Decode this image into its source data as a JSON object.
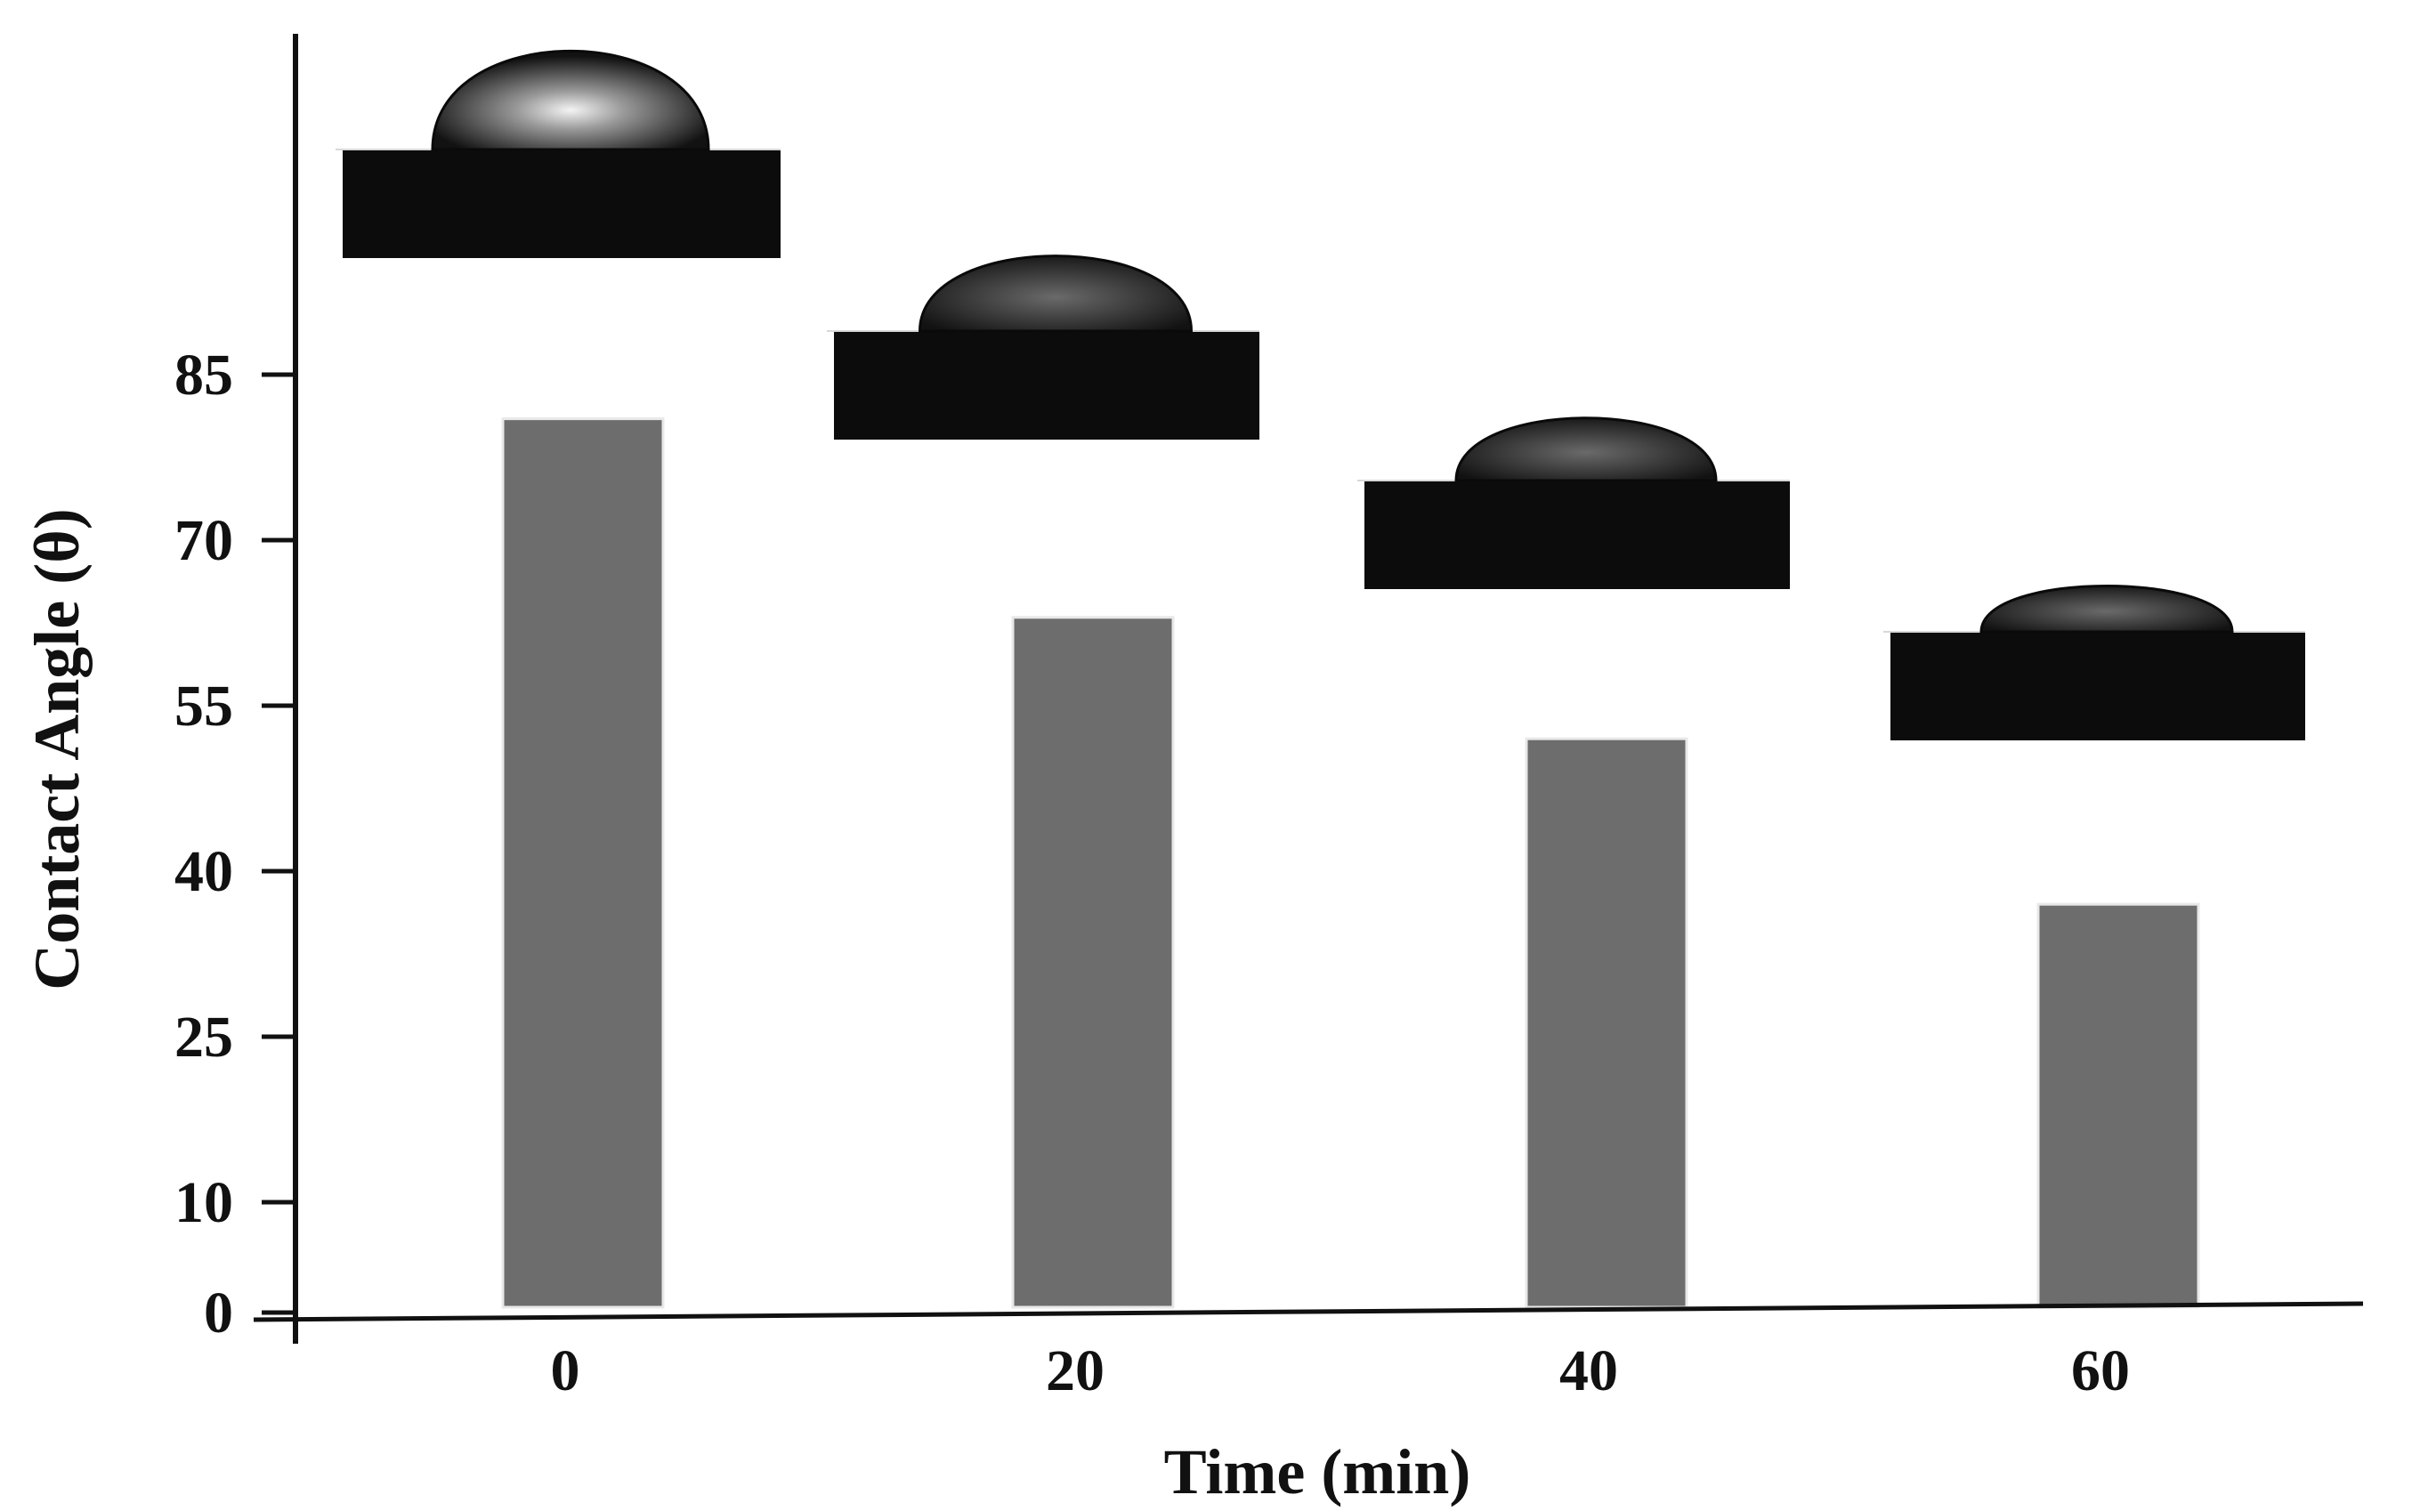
{
  "chart_data": {
    "type": "bar",
    "xlabel": "Time (min)",
    "ylabel": "Contact Angle (θ)",
    "categories": [
      "0",
      "20",
      "40",
      "60"
    ],
    "values": [
      81,
      63,
      52,
      37
    ],
    "y_ticks": [
      0,
      10,
      25,
      40,
      55,
      70,
      85
    ],
    "ylim": [
      0,
      115
    ],
    "grid": false,
    "legend": "none",
    "bar_color": "#6d6d6d",
    "axis_color": "#111111",
    "insets": [
      {
        "category": "0",
        "kind": "droplet-photo",
        "description_icon": "droplet-image-icon"
      },
      {
        "category": "20",
        "kind": "droplet-photo",
        "description_icon": "droplet-image-icon"
      },
      {
        "category": "40",
        "kind": "droplet-photo",
        "description_icon": "droplet-image-icon"
      },
      {
        "category": "60",
        "kind": "droplet-photo",
        "description_icon": "droplet-image-icon"
      }
    ]
  }
}
